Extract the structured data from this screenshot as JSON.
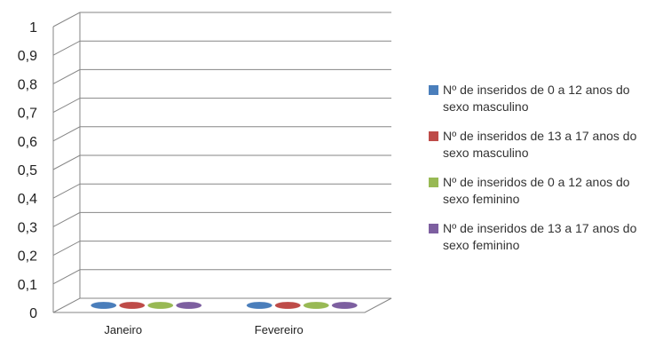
{
  "chart_data": {
    "type": "bar",
    "categories": [
      "Janeiro",
      "Fevereiro"
    ],
    "series": [
      {
        "name": "Nº de inseridos de 0 a 12 anos do sexo masculino",
        "values": [
          0,
          0
        ],
        "color": "#4a7ebb"
      },
      {
        "name": "Nº de inseridos de 13 a 17 anos do sexo masculino",
        "values": [
          0,
          0
        ],
        "color": "#be4b48"
      },
      {
        "name": "Nº de inseridos de 0 a 12 anos do sexo feminino",
        "values": [
          0,
          0
        ],
        "color": "#98b954"
      },
      {
        "name": "Nº de inseridos de 13 a 17 anos do sexo feminino",
        "values": [
          0,
          0
        ],
        "color": "#7d5fa0"
      }
    ],
    "ylim": [
      0,
      1
    ],
    "yticks": [
      "0",
      "0,1",
      "0,2",
      "0,3",
      "0,4",
      "0,5",
      "0,6",
      "0,7",
      "0,8",
      "0,9",
      "1"
    ],
    "grid": true,
    "legend_position": "right",
    "style": "3d"
  }
}
